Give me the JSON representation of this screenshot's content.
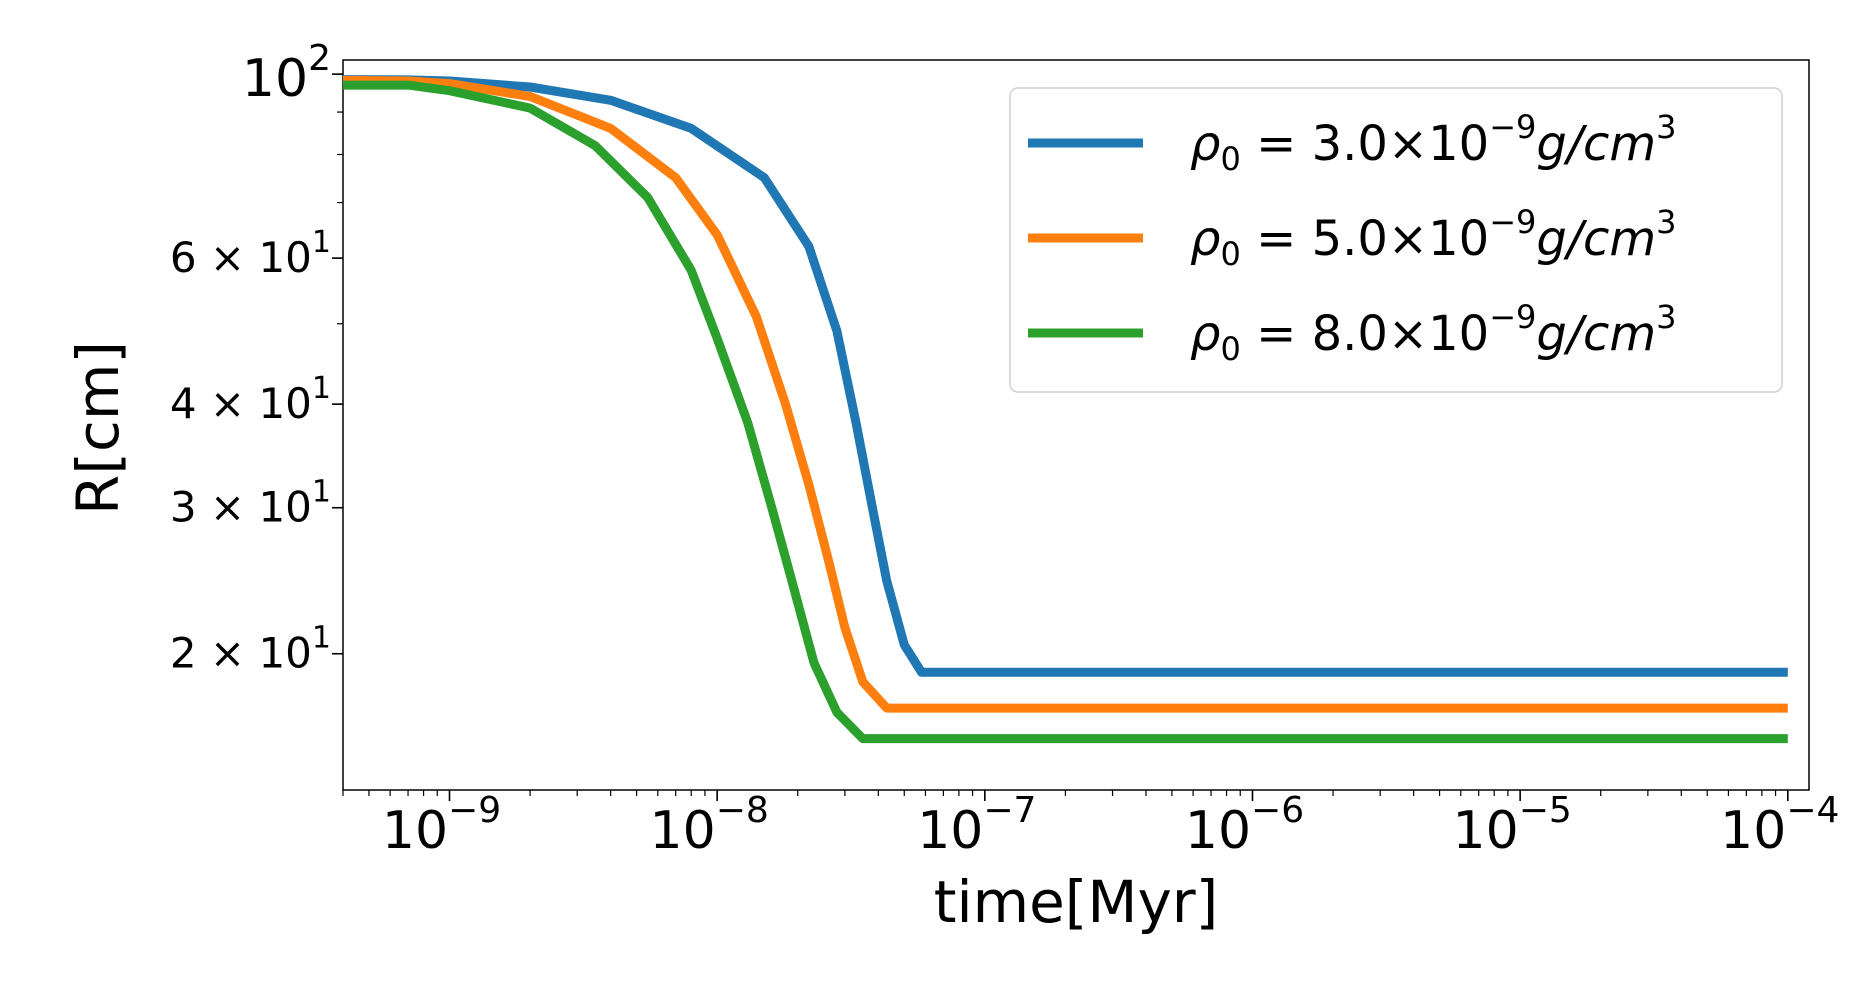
{
  "chart_data": {
    "type": "line",
    "title": "",
    "xlabel": "time[Myr]",
    "ylabel": "R[cm]",
    "xscale": "log",
    "yscale": "log",
    "xlim": [
      4e-10,
      0.00012
    ],
    "ylim": [
      13.7,
      104
    ],
    "grid": false,
    "legend_position": "top-right",
    "x_ticks": [
      {
        "value": 1e-09,
        "base": "10",
        "exp": "−9"
      },
      {
        "value": 1e-08,
        "base": "10",
        "exp": "−8"
      },
      {
        "value": 1e-07,
        "base": "10",
        "exp": "−7"
      },
      {
        "value": 1e-06,
        "base": "10",
        "exp": "−6"
      },
      {
        "value": 1e-05,
        "base": "10",
        "exp": "−5"
      },
      {
        "value": 0.0001,
        "base": "10",
        "exp": "−4"
      }
    ],
    "y_ticks": [
      {
        "value": 100,
        "mant": "",
        "base": "10",
        "exp": "2"
      },
      {
        "value": 60,
        "mant": "6 × ",
        "base": "10",
        "exp": "1"
      },
      {
        "value": 40,
        "mant": "4 × ",
        "base": "10",
        "exp": "1"
      },
      {
        "value": 30,
        "mant": "3 × ",
        "base": "10",
        "exp": "1"
      },
      {
        "value": 20,
        "mant": "2 × ",
        "base": "10",
        "exp": "1"
      }
    ],
    "series": [
      {
        "name": "ρ0 = 3.0×10−9g/cm3",
        "label_parts": {
          "rho": "ρ",
          "sub": "0",
          "eq": " = 3.0×10",
          "exp1": "−9",
          "unit": "g/cm",
          "exp2": "3"
        },
        "color": "#1f77b4",
        "x": [
          4e-10,
          7e-10,
          1e-09,
          2e-09,
          4e-09,
          8e-09,
          1.5e-08,
          2.2e-08,
          2.8e-08,
          3.3e-08,
          3.8e-08,
          4.3e-08,
          5e-08,
          5.8e-08,
          1e-07,
          1e-06,
          1e-05,
          0.0001
        ],
        "y": [
          98.5,
          98.4,
          98.1,
          96.5,
          93.0,
          86.0,
          75.0,
          62.0,
          49.0,
          38.0,
          30.0,
          24.5,
          20.5,
          19.0,
          19.0,
          19.0,
          19.0,
          19.0
        ]
      },
      {
        "name": "ρ0 = 5.0×10−9g/cm3",
        "label_parts": {
          "rho": "ρ",
          "sub": "0",
          "eq": " = 5.0×10",
          "exp1": "−9",
          "unit": "g/cm",
          "exp2": "3"
        },
        "color": "#ff7f0e",
        "x": [
          4e-10,
          7e-10,
          1e-09,
          2e-09,
          4e-09,
          7e-09,
          1e-08,
          1.4e-08,
          1.8e-08,
          2.2e-08,
          2.6e-08,
          3e-08,
          3.5e-08,
          4.3e-08,
          1e-07,
          1e-06,
          1e-05,
          0.0001
        ],
        "y": [
          98.3,
          98.1,
          97.4,
          94.0,
          86.0,
          75.0,
          64.0,
          51.0,
          40.0,
          32.0,
          26.0,
          21.5,
          18.5,
          17.2,
          17.2,
          17.2,
          17.2,
          17.2
        ]
      },
      {
        "name": "ρ0 = 8.0×10−9g/cm3",
        "label_parts": {
          "rho": "ρ",
          "sub": "0",
          "eq": " = 8.0×10",
          "exp1": "−9",
          "unit": "g/cm",
          "exp2": "3"
        },
        "color": "#2ca02c",
        "x": [
          4e-10,
          7e-10,
          1e-09,
          2e-09,
          3.5e-09,
          5.5e-09,
          8e-09,
          1e-08,
          1.3e-08,
          1.6e-08,
          1.9e-08,
          2.3e-08,
          2.8e-08,
          3.5e-08,
          1e-07,
          1e-06,
          1e-05,
          0.0001
        ],
        "y": [
          97.0,
          97.0,
          95.5,
          91.0,
          82.0,
          71.0,
          58.0,
          48.0,
          38.0,
          30.0,
          24.5,
          19.5,
          17.0,
          15.8,
          15.8,
          15.8,
          15.8,
          15.8
        ]
      }
    ]
  }
}
